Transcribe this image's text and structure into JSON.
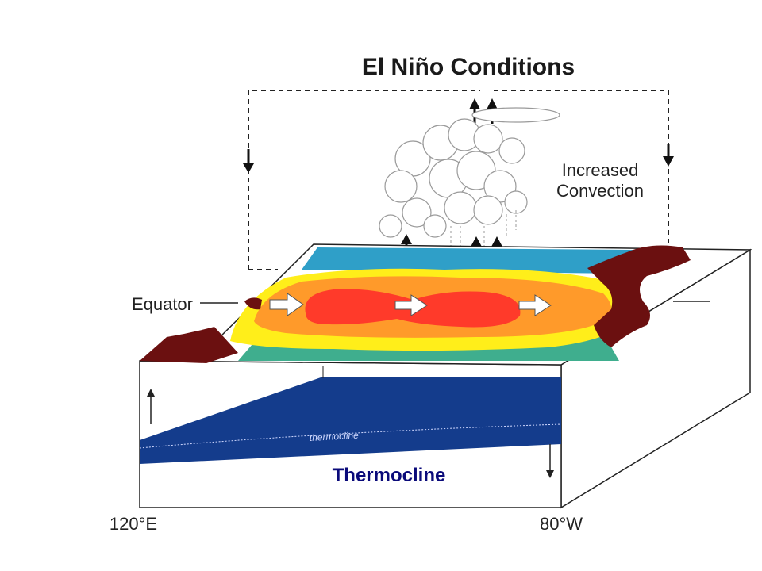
{
  "title": "El Niño Conditions",
  "labels": {
    "convection_line1": "Increased",
    "convection_line2": "Convection",
    "equator": "Equator",
    "thermocline": "Thermocline",
    "inline_thermocline": "thermocline",
    "west_longitude": "120°E",
    "east_longitude": "80°W"
  },
  "colors": {
    "land": "#6b1010",
    "ocean_deep": "#143c8c",
    "warm_core": "#ff3a2a",
    "warm_orange": "#ff9a2a",
    "warm_yellow": "#ffee1a",
    "cool_teal": "#3fae8e",
    "cool_blue": "#2f9fc8",
    "thermocline_text": "#0a0a7a"
  },
  "icons": {
    "wind_arrow": "white-arrow-right-icon",
    "updraft_arrow": "arrow-up-icon",
    "downdraft_arrow": "arrow-down-icon",
    "cloud": "cloud-icon"
  }
}
